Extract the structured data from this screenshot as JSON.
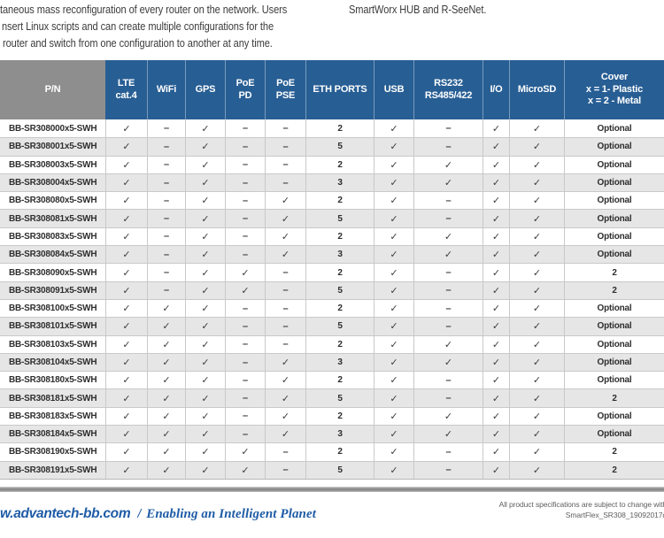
{
  "intro": {
    "left_lines": [
      "taneous mass reconfiguration of every router on the network. Users",
      "nsert Linux scripts and can create multiple configurations for the",
      "router and switch from one configuration to another at any time."
    ],
    "right_lines": [
      "SmartWorx HUB and R-SeeNet."
    ]
  },
  "table": {
    "headers": [
      {
        "id": "pn",
        "lines": [
          "P/N"
        ]
      },
      {
        "id": "lte-cat4",
        "lines": [
          "LTE",
          "cat.4"
        ]
      },
      {
        "id": "wifi",
        "lines": [
          "WiFi"
        ]
      },
      {
        "id": "gps",
        "lines": [
          "GPS"
        ]
      },
      {
        "id": "poe-pd",
        "lines": [
          "PoE",
          "PD"
        ]
      },
      {
        "id": "poe-pse",
        "lines": [
          "PoE",
          "PSE"
        ]
      },
      {
        "id": "eth-ports",
        "lines": [
          "ETH PORTS"
        ]
      },
      {
        "id": "usb",
        "lines": [
          "USB"
        ]
      },
      {
        "id": "rs232-rs485-422",
        "lines": [
          "RS232",
          "RS485/422"
        ]
      },
      {
        "id": "io",
        "lines": [
          "I/O"
        ]
      },
      {
        "id": "microsd",
        "lines": [
          "MicroSD"
        ]
      },
      {
        "id": "cover",
        "lines": [
          "Cover",
          "x = 1- Plastic",
          "x = 2 - Metal"
        ]
      }
    ],
    "rows": [
      {
        "pn": "BB-SR308000x5-SWH",
        "cells": [
          "✓",
          "–",
          "✓",
          "–",
          "–",
          "2",
          "✓",
          "–",
          "✓",
          "✓",
          "Optional"
        ]
      },
      {
        "pn": "BB-SR308001x5-SWH",
        "cells": [
          "✓",
          "–",
          "✓",
          "–",
          "–",
          "5",
          "✓",
          "–",
          "✓",
          "✓",
          "Optional"
        ]
      },
      {
        "pn": "BB-SR308003x5-SWH",
        "cells": [
          "✓",
          "–",
          "✓",
          "–",
          "–",
          "2",
          "✓",
          "✓",
          "✓",
          "✓",
          "Optional"
        ]
      },
      {
        "pn": "BB-SR308004x5-SWH",
        "cells": [
          "✓",
          "–",
          "✓",
          "–",
          "–",
          "3",
          "✓",
          "✓",
          "✓",
          "✓",
          "Optional"
        ]
      },
      {
        "pn": "BB-SR308080x5-SWH",
        "cells": [
          "✓",
          "–",
          "✓",
          "–",
          "✓",
          "2",
          "✓",
          "–",
          "✓",
          "✓",
          "Optional"
        ]
      },
      {
        "pn": "BB-SR308081x5-SWH",
        "cells": [
          "✓",
          "–",
          "✓",
          "–",
          "✓",
          "5",
          "✓",
          "–",
          "✓",
          "✓",
          "Optional"
        ]
      },
      {
        "pn": "BB-SR308083x5-SWH",
        "cells": [
          "✓",
          "–",
          "✓",
          "–",
          "✓",
          "2",
          "✓",
          "✓",
          "✓",
          "✓",
          "Optional"
        ]
      },
      {
        "pn": "BB-SR308084x5-SWH",
        "cells": [
          "✓",
          "–",
          "✓",
          "–",
          "✓",
          "3",
          "✓",
          "✓",
          "✓",
          "✓",
          "Optional"
        ]
      },
      {
        "pn": "BB-SR308090x5-SWH",
        "cells": [
          "✓",
          "–",
          "✓",
          "✓",
          "–",
          "2",
          "✓",
          "–",
          "✓",
          "✓",
          "2"
        ]
      },
      {
        "pn": "BB-SR308091x5-SWH",
        "cells": [
          "✓",
          "–",
          "✓",
          "✓",
          "–",
          "5",
          "✓",
          "–",
          "✓",
          "✓",
          "2"
        ]
      },
      {
        "pn": "BB-SR308100x5-SWH",
        "cells": [
          "✓",
          "✓",
          "✓",
          "–",
          "–",
          "2",
          "✓",
          "–",
          "✓",
          "✓",
          "Optional"
        ]
      },
      {
        "pn": "BB-SR308101x5-SWH",
        "cells": [
          "✓",
          "✓",
          "✓",
          "–",
          "–",
          "5",
          "✓",
          "–",
          "✓",
          "✓",
          "Optional"
        ]
      },
      {
        "pn": "BB-SR308103x5-SWH",
        "cells": [
          "✓",
          "✓",
          "✓",
          "–",
          "–",
          "2",
          "✓",
          "✓",
          "✓",
          "✓",
          "Optional"
        ]
      },
      {
        "pn": "BB-SR308104x5-SWH",
        "cells": [
          "✓",
          "✓",
          "✓",
          "–",
          "✓",
          "3",
          "✓",
          "✓",
          "✓",
          "✓",
          "Optional"
        ]
      },
      {
        "pn": "BB-SR308180x5-SWH",
        "cells": [
          "✓",
          "✓",
          "✓",
          "–",
          "✓",
          "2",
          "✓",
          "–",
          "✓",
          "✓",
          "Optional"
        ]
      },
      {
        "pn": "BB-SR308181x5-SWH",
        "cells": [
          "✓",
          "✓",
          "✓",
          "–",
          "✓",
          "5",
          "✓",
          "–",
          "✓",
          "✓",
          "2"
        ]
      },
      {
        "pn": "BB-SR308183x5-SWH",
        "cells": [
          "✓",
          "✓",
          "✓",
          "–",
          "✓",
          "2",
          "✓",
          "✓",
          "✓",
          "✓",
          "Optional"
        ]
      },
      {
        "pn": "BB-SR308184x5-SWH",
        "cells": [
          "✓",
          "✓",
          "✓",
          "–",
          "✓",
          "3",
          "✓",
          "✓",
          "✓",
          "✓",
          "Optional"
        ]
      },
      {
        "pn": "BB-SR308190x5-SWH",
        "cells": [
          "✓",
          "✓",
          "✓",
          "✓",
          "–",
          "2",
          "✓",
          "–",
          "✓",
          "✓",
          "2"
        ]
      },
      {
        "pn": "BB-SR308191x5-SWH",
        "cells": [
          "✓",
          "✓",
          "✓",
          "✓",
          "–",
          "5",
          "✓",
          "–",
          "✓",
          "✓",
          "2"
        ]
      }
    ]
  },
  "footer": {
    "website": "w.advantech-bb.com",
    "separator": "/",
    "tagline": "Enabling an Intelligent Planet",
    "disclaimer_line1": "All product specifications are subject to change with",
    "disclaimer_line2": "SmartFlex_SR308_19092017d"
  },
  "colors": {
    "header_blue": "#275e94",
    "header_gray": "#8e8e8e",
    "row_alt": "#e6e6e6",
    "footer_blue": "#1e5ca6"
  }
}
